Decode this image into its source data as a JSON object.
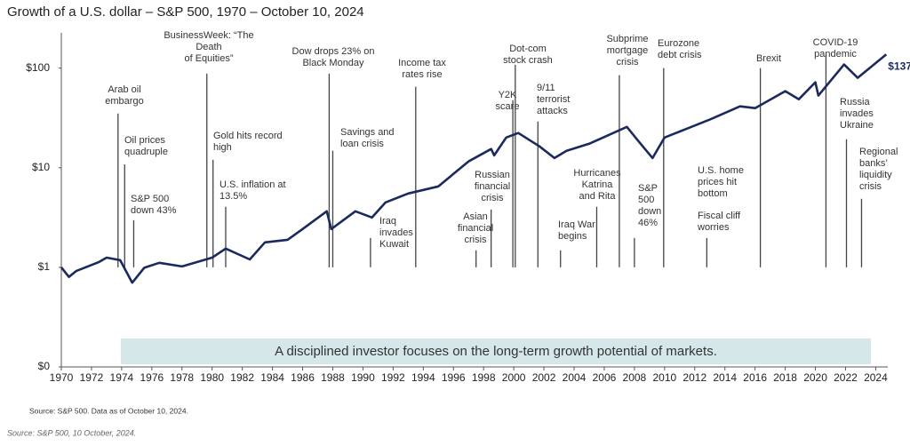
{
  "chart_data": {
    "type": "line",
    "title": "Growth of a U.S. dollar –  S&P 500, 1970 – October 10, 2024",
    "log_scale": true,
    "xlim": [
      1970,
      2024.8
    ],
    "xticks": [
      1970,
      1972,
      1974,
      1976,
      1978,
      1980,
      1982,
      1984,
      1986,
      1988,
      1990,
      1992,
      1994,
      1996,
      1998,
      2000,
      2002,
      2004,
      2006,
      2008,
      2010,
      2012,
      2014,
      2016,
      2018,
      2020,
      2022,
      2024
    ],
    "ylim": [
      0.1,
      250
    ],
    "yticks": [
      {
        "value": 0.1,
        "label": "$0"
      },
      {
        "value": 1,
        "label": "$1"
      },
      {
        "value": 10,
        "label": "$10"
      },
      {
        "value": 100,
        "label": "$100"
      }
    ],
    "series": [
      {
        "color": "#1b2a5e",
        "x": [
          1970,
          1970.5,
          1971,
          1972.5,
          1973,
          1973.9,
          1974.7,
          1975.5,
          1976.5,
          1978,
          1980,
          1980.9,
          1982.5,
          1983.5,
          1985,
          1986,
          1987.6,
          1987.9,
          1989.5,
          1990.6,
          1991.5,
          1993,
          1994,
          1995,
          1996,
          1997,
          1998.5,
          1998.7,
          1999.5,
          2000.3,
          2001.7,
          2002.7,
          2003.5,
          2005,
          2007.5,
          2008.3,
          2009.2,
          2010,
          2011.5,
          2013,
          2015,
          2016,
          2018,
          2018.9,
          2020,
          2020.2,
          2021.9,
          2022.8,
          2024.7
        ],
        "values": [
          1,
          0.8,
          0.92,
          1.13,
          1.25,
          1.18,
          0.7,
          0.99,
          1.11,
          1.02,
          1.25,
          1.54,
          1.2,
          1.78,
          1.89,
          2.42,
          3.65,
          2.42,
          3.65,
          3.16,
          4.48,
          5.51,
          5.98,
          6.49,
          8.66,
          11.55,
          15.4,
          13.3,
          20.1,
          22.3,
          16.4,
          12.5,
          14.8,
          17.4,
          25.7,
          18.2,
          12.5,
          20.1,
          24.7,
          30.4,
          41.3,
          39.6,
          58.6,
          48.7,
          72,
          52.9,
          108.6,
          79.8,
          137
        ],
        "value_labels": [
          null,
          null,
          null,
          null,
          null,
          null,
          null,
          null,
          null,
          null,
          null,
          null,
          null,
          null,
          null,
          null,
          null,
          null,
          null,
          null,
          null,
          null,
          null,
          null,
          null,
          null,
          null,
          null,
          null,
          null,
          null,
          null,
          null,
          null,
          null,
          null,
          null,
          null,
          null,
          null,
          null,
          null,
          null,
          null,
          null,
          null,
          null,
          null,
          "$137"
        ]
      }
    ],
    "annotations": [
      {
        "lines": [
          "Arab oil",
          "embargo"
        ],
        "x": 1973.76,
        "y": 35
      },
      {
        "lines": [
          "Oil prices",
          "quadruple"
        ],
        "x": 1974.2,
        "y": 10.8
      },
      {
        "lines": [
          "S&P 500",
          "down 43%"
        ],
        "x": 1974.8,
        "y": 2.97
      },
      {
        "lines": [
          "BusinessWeek: “The",
          "Death",
          "of Equities”"
        ],
        "x": 1979.65,
        "y": 88
      },
      {
        "lines": [
          "Gold hits record",
          "high"
        ],
        "x": 1980.06,
        "y": 12
      },
      {
        "lines": [
          "U.S. inflation at",
          "13.5%"
        ],
        "x": 1980.9,
        "y": 4.05
      },
      {
        "lines": [
          "Dow drops 23% on",
          "Black Monday"
        ],
        "x": 1987.76,
        "y": 88
      },
      {
        "lines": [
          "Savings and",
          "loan crisis"
        ],
        "x": 1988.0,
        "y": 14.8
      },
      {
        "lines": [
          "Iraq",
          "invades",
          "Kuwait"
        ],
        "x": 1990.5,
        "y": 1.97
      },
      {
        "lines": [
          "Income tax",
          "rates rise"
        ],
        "x": 1993.5,
        "y": 65
      },
      {
        "lines": [
          "Asian",
          "financial",
          "crisis"
        ],
        "x": 1997.5,
        "y": 1.48
      },
      {
        "lines": [
          "Russian",
          "financial",
          "crisis"
        ],
        "x": 1998.5,
        "y": 3.8
      },
      {
        "lines": [
          "Y2K",
          "scare"
        ],
        "x": 1999.94,
        "y": 47.6
      },
      {
        "lines": [
          "Dot-com",
          "stock crash"
        ],
        "x": 2000.1,
        "y": 108
      },
      {
        "lines": [
          "9/11",
          "terrorist",
          "attacks"
        ],
        "x": 2001.6,
        "y": 29.1
      },
      {
        "lines": [
          "Iraq War",
          "begins"
        ],
        "x": 2003.1,
        "y": 1.48
      },
      {
        "lines": [
          "Hurricanes",
          "Katrina",
          "and Rita"
        ],
        "x": 2005.5,
        "y": 4.05
      },
      {
        "lines": [
          "Subprime",
          "mortgage",
          "crisis"
        ],
        "x": 2007.0,
        "y": 84.9
      },
      {
        "lines": [
          "S&P",
          "500",
          "down",
          "46%"
        ],
        "x": 2008.0,
        "y": 1.97
      },
      {
        "lines": [
          "Eurozone",
          "debt crisis"
        ],
        "x": 2009.94,
        "y": 100
      },
      {
        "lines": [
          "U.S. home",
          "prices hit",
          "bottom"
        ]
      },
      {
        "lines": [
          "Fiscal cliff",
          "worries"
        ],
        "x": 2012.8,
        "y": 1.97
      },
      {
        "lines": [
          "Brexit"
        ],
        "x": 2016.35,
        "y": 100
      },
      {
        "lines": [
          "COVID-19",
          "pandemic"
        ],
        "x": 2020.7,
        "y": 136
      },
      {
        "lines": [
          "Russia",
          "invades",
          "Ukraine"
        ],
        "x": 2022.06,
        "y": 19.3
      },
      {
        "lines": [
          "Regional",
          "banks’",
          "liquidity",
          "crisis"
        ],
        "x": 2023.06,
        "y": 4.87
      }
    ],
    "banner": "A disciplined investor focuses on the long-term growth potential of markets.",
    "source": "Source: S&P 500. Data as of October 10, 2024.",
    "caption": "Source: S&P 500, 10 October, 2024."
  }
}
